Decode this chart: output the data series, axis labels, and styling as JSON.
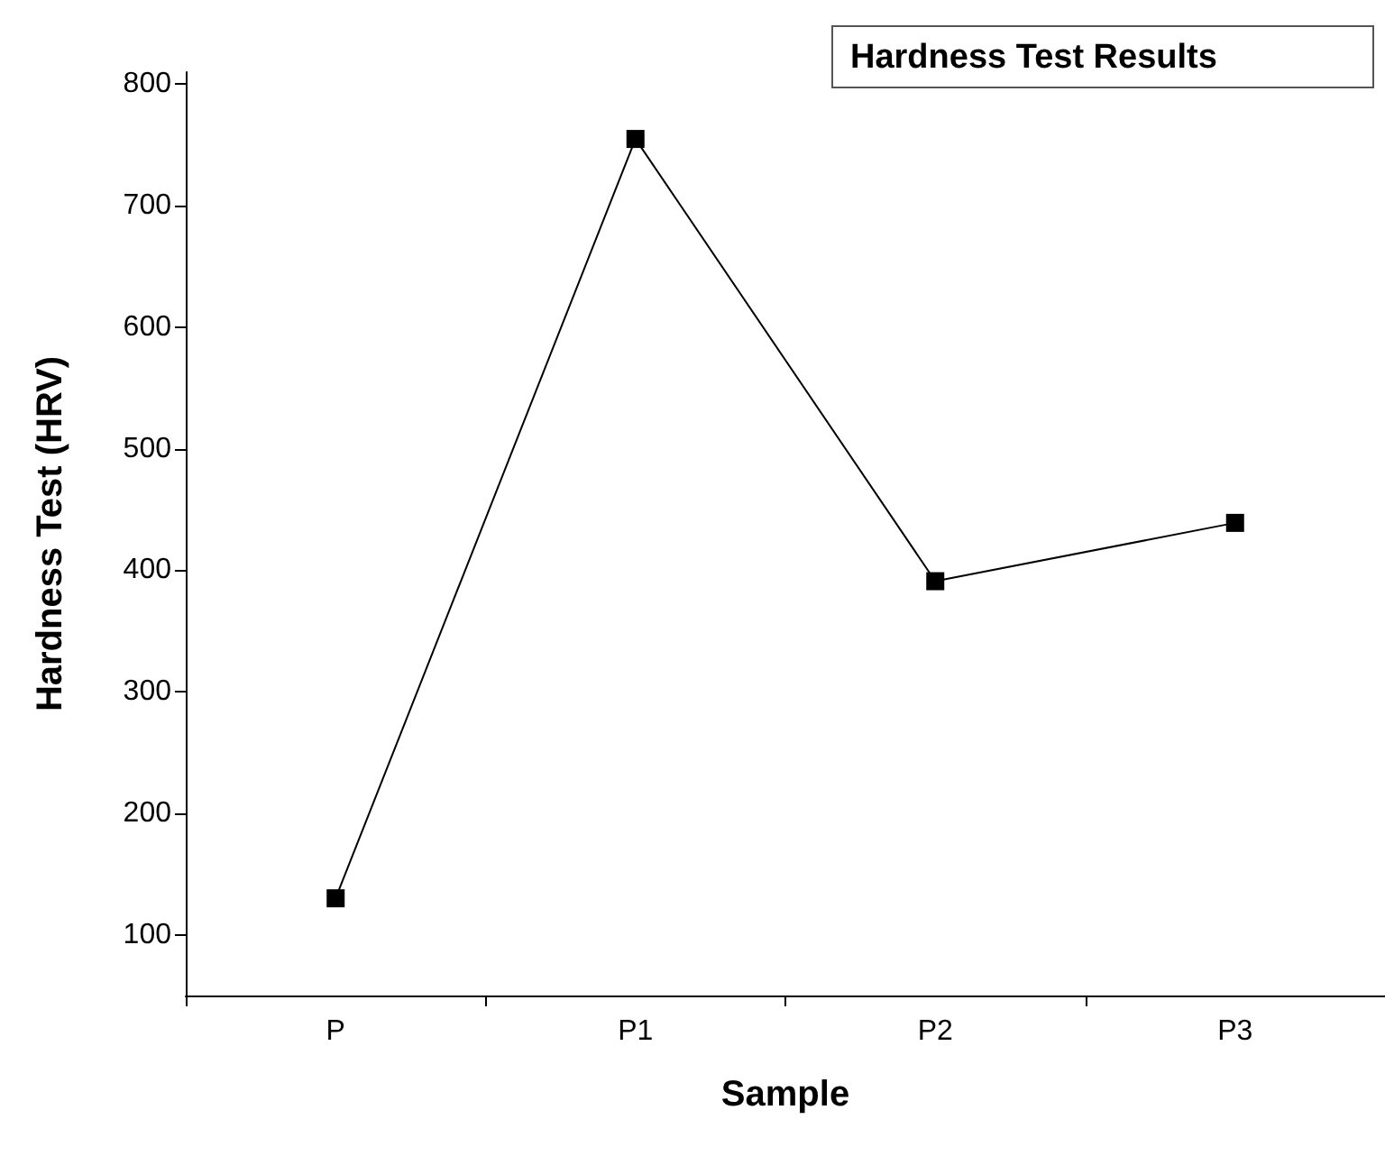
{
  "chart_data": {
    "type": "line",
    "xlabel": "Sample",
    "ylabel": "Hardness Test (HRV)",
    "categories": [
      "P",
      "P1",
      "P2",
      "P3"
    ],
    "series": [
      {
        "color": "#000000",
        "values": [
          130,
          755,
          391,
          439
        ]
      }
    ],
    "ylim": [
      50,
      810
    ],
    "yticks": [
      100,
      200,
      300,
      400,
      500,
      600,
      700,
      800
    ],
    "marker": "square",
    "line_style": "solid",
    "grid": false,
    "annotations": [
      "Hardness Test Results"
    ]
  }
}
